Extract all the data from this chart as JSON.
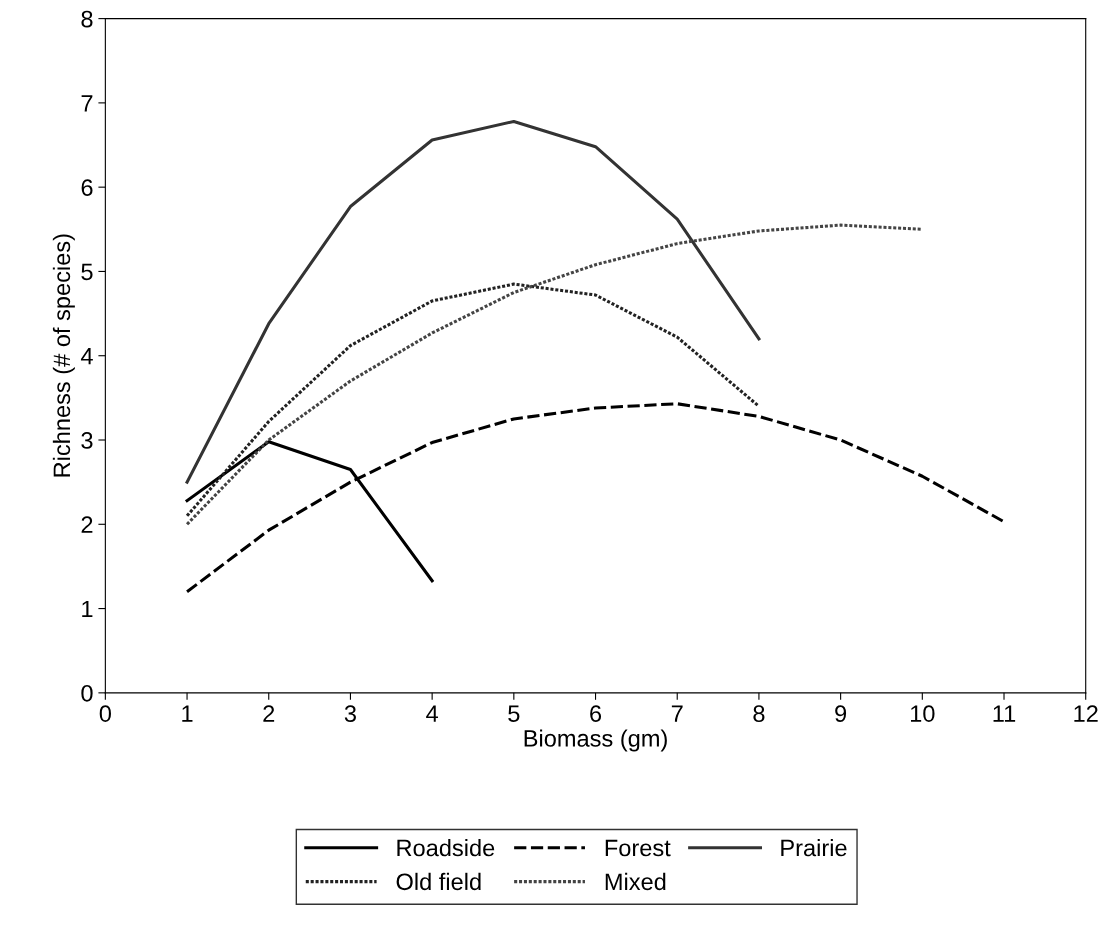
{
  "chart_data": {
    "type": "line",
    "xlabel": "Biomass (gm)",
    "ylabel": "Richness (# of species)",
    "x": [
      1,
      2,
      3,
      4,
      5,
      6,
      7,
      8,
      9,
      10,
      11
    ],
    "series": [
      {
        "name": "Roadside",
        "color": "#000000",
        "line_style": "solid",
        "values": [
          2.28,
          2.98,
          2.65,
          1.33,
          null,
          null,
          null,
          null,
          null,
          null,
          null
        ]
      },
      {
        "name": "Forest",
        "color": "#000000",
        "line_style": "dashed",
        "values": [
          1.2,
          1.93,
          2.5,
          2.97,
          3.25,
          3.38,
          3.43,
          3.28,
          3.0,
          2.57,
          2.03
        ]
      },
      {
        "name": "Prairie",
        "color": "#333333",
        "line_style": "solid",
        "values": [
          2.5,
          4.38,
          5.77,
          6.56,
          6.78,
          6.48,
          5.62,
          4.2,
          null,
          null,
          null
        ]
      },
      {
        "name": "Old field",
        "color": "#222222",
        "line_style": "dotted",
        "values": [
          2.1,
          3.22,
          4.12,
          4.65,
          4.85,
          4.72,
          4.22,
          3.4,
          null,
          null,
          null
        ]
      },
      {
        "name": "Mixed",
        "color": "#444444",
        "line_style": "dotted",
        "values": [
          2.0,
          3.0,
          3.7,
          4.27,
          4.75,
          5.08,
          5.33,
          5.48,
          5.55,
          5.5,
          null
        ]
      }
    ],
    "xlim": [
      0,
      12
    ],
    "xticks": [
      0,
      1,
      2,
      3,
      4,
      5,
      6,
      7,
      8,
      9,
      10,
      11,
      12
    ],
    "ylim": [
      0,
      8
    ],
    "yticks": [
      0,
      1,
      2,
      3,
      4,
      5,
      6,
      7,
      8
    ],
    "grid": false,
    "legend": "bottom",
    "marker": "none"
  }
}
